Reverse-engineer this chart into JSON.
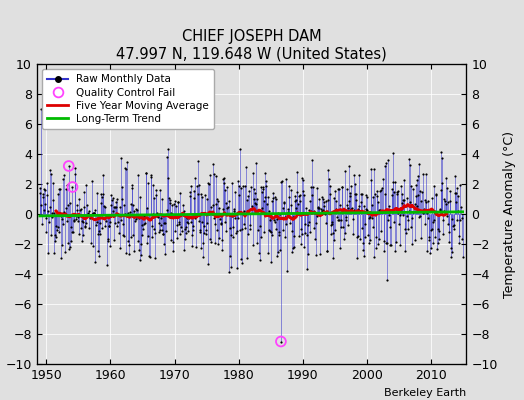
{
  "title": "CHIEF JOSEPH DAM",
  "subtitle": "47.997 N, 119.648 W (United States)",
  "ylabel": "Temperature Anomaly (°C)",
  "credit": "Berkeley Earth",
  "xlim": [
    1948.5,
    2015.5
  ],
  "ylim": [
    -10,
    10
  ],
  "xticks": [
    1950,
    1960,
    1970,
    1980,
    1990,
    2000,
    2010
  ],
  "yticks": [
    -10,
    -8,
    -6,
    -4,
    -2,
    0,
    2,
    4,
    6,
    8,
    10
  ],
  "bg_color": "#e0e0e0",
  "raw_line_color": "#3333cc",
  "ma_color": "#dd0000",
  "trend_color": "#00bb00",
  "qc_color": "#ff44ff",
  "dot_color": "#000000",
  "seed": 137,
  "start_year": 1949,
  "end_year": 2014,
  "qc_year1": 1953.5,
  "qc_val1": 3.2,
  "qc_year2": 1954.0,
  "qc_val2": 1.8,
  "qc_year3": 1986.5,
  "qc_val3": -8.5,
  "outlier_year": 1986.5,
  "outlier_val": -8.5,
  "trend_intercept": 0.0,
  "trend_slope": 0.008
}
